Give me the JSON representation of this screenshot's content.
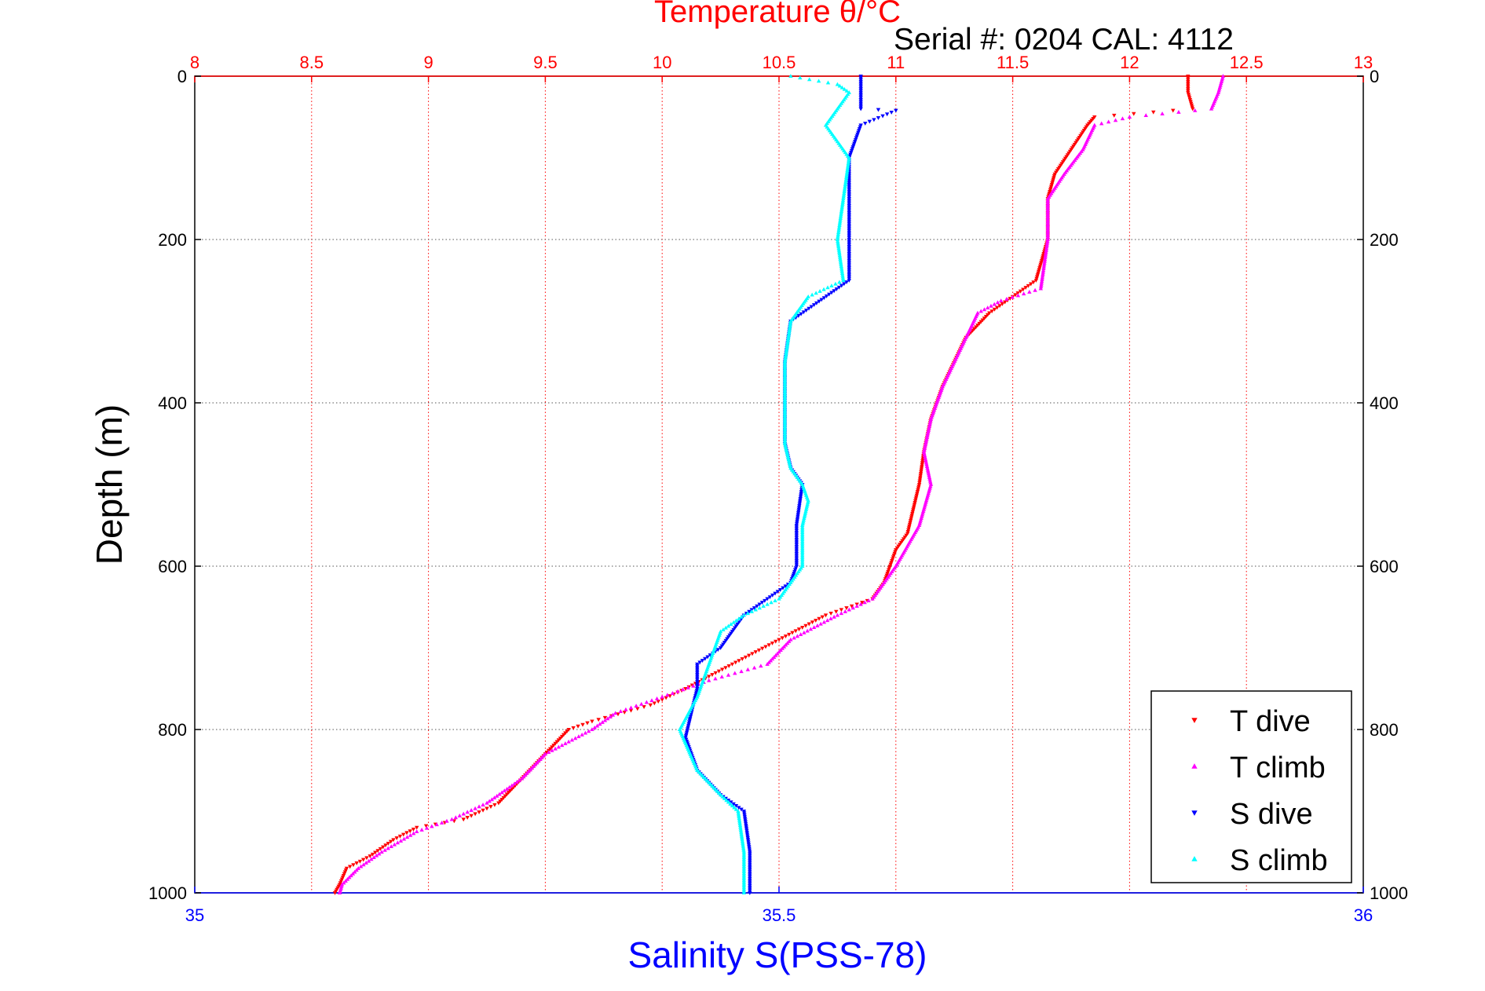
{
  "chart_data": {
    "type": "scatter",
    "title": "Temperature θ/°C",
    "subtitle": "Serial #: 0204  CAL: 4112",
    "xlabel": "Salinity S(PSS-78)",
    "ylabel": "Depth (m)",
    "top_axis": {
      "label": "Temperature θ/°C",
      "lim": [
        8,
        13
      ],
      "ticks": [
        "8",
        "8.5",
        "9",
        "9.5",
        "10",
        "10.5",
        "11",
        "11.5",
        "12",
        "12.5",
        "13"
      ],
      "tick_values": [
        8,
        8.5,
        9,
        9.5,
        10,
        10.5,
        11,
        11.5,
        12,
        12.5,
        13
      ],
      "color": "#ff0000",
      "grid": true
    },
    "bottom_axis": {
      "label": "Salinity S(PSS-78)",
      "lim": [
        35,
        36
      ],
      "ticks": [
        "35",
        "35.5",
        "36"
      ],
      "tick_values": [
        35,
        35.5,
        36
      ],
      "color": "#0000ff"
    },
    "y_axis": {
      "label": "Depth (m)",
      "lim": [
        0,
        1000
      ],
      "reversed": true,
      "ticks": [
        "0",
        "200",
        "400",
        "600",
        "800",
        "1000"
      ],
      "tick_values": [
        0,
        200,
        400,
        600,
        800,
        1000
      ],
      "grid": true
    },
    "legend": {
      "placement": "bottom-right"
    },
    "series": [
      {
        "name": "T dive",
        "axis": "temperature",
        "color": "#ff0000",
        "marker": "triangle-down",
        "points": [
          [
            12.25,
            0
          ],
          [
            12.25,
            20
          ],
          [
            12.27,
            40
          ],
          [
            11.85,
            50
          ],
          [
            11.82,
            60
          ],
          [
            11.75,
            90
          ],
          [
            11.68,
            120
          ],
          [
            11.65,
            150
          ],
          [
            11.65,
            200
          ],
          [
            11.6,
            250
          ],
          [
            11.5,
            270
          ],
          [
            11.4,
            290
          ],
          [
            11.3,
            320
          ],
          [
            11.2,
            380
          ],
          [
            11.15,
            420
          ],
          [
            11.12,
            460
          ],
          [
            11.1,
            500
          ],
          [
            11.05,
            560
          ],
          [
            11.0,
            580
          ],
          [
            10.95,
            620
          ],
          [
            10.9,
            640
          ],
          [
            10.7,
            660
          ],
          [
            10.5,
            690
          ],
          [
            10.3,
            720
          ],
          [
            10.1,
            750
          ],
          [
            9.95,
            770
          ],
          [
            9.7,
            790
          ],
          [
            9.6,
            800
          ],
          [
            9.5,
            830
          ],
          [
            9.4,
            860
          ],
          [
            9.3,
            890
          ],
          [
            9.15,
            910
          ],
          [
            8.95,
            920
          ],
          [
            8.85,
            935
          ],
          [
            8.75,
            955
          ],
          [
            8.65,
            970
          ],
          [
            8.62,
            990
          ],
          [
            8.6,
            1000
          ]
        ]
      },
      {
        "name": "T climb",
        "axis": "temperature",
        "color": "#ff00ff",
        "marker": "triangle-up",
        "points": [
          [
            12.4,
            0
          ],
          [
            12.38,
            20
          ],
          [
            12.35,
            40
          ],
          [
            12.0,
            50
          ],
          [
            11.85,
            60
          ],
          [
            11.8,
            90
          ],
          [
            11.72,
            120
          ],
          [
            11.65,
            150
          ],
          [
            11.65,
            200
          ],
          [
            11.62,
            260
          ],
          [
            11.45,
            275
          ],
          [
            11.35,
            290
          ],
          [
            11.3,
            320
          ],
          [
            11.2,
            380
          ],
          [
            11.15,
            420
          ],
          [
            11.12,
            460
          ],
          [
            11.15,
            500
          ],
          [
            11.1,
            550
          ],
          [
            11.0,
            600
          ],
          [
            10.95,
            620
          ],
          [
            10.9,
            640
          ],
          [
            10.75,
            660
          ],
          [
            10.55,
            690
          ],
          [
            10.45,
            720
          ],
          [
            10.2,
            740
          ],
          [
            10.0,
            760
          ],
          [
            9.8,
            780
          ],
          [
            9.7,
            800
          ],
          [
            9.5,
            830
          ],
          [
            9.4,
            860
          ],
          [
            9.25,
            890
          ],
          [
            9.1,
            910
          ],
          [
            8.95,
            925
          ],
          [
            8.8,
            950
          ],
          [
            8.7,
            970
          ],
          [
            8.63,
            990
          ],
          [
            8.62,
            1000
          ]
        ]
      },
      {
        "name": "S dive",
        "axis": "salinity",
        "color": "#0000ff",
        "marker": "triangle-down",
        "points": [
          [
            35.57,
            0
          ],
          [
            35.57,
            20
          ],
          [
            35.57,
            40
          ],
          [
            35.6,
            42
          ],
          [
            35.57,
            60
          ],
          [
            35.56,
            100
          ],
          [
            35.56,
            150
          ],
          [
            35.56,
            200
          ],
          [
            35.56,
            250
          ],
          [
            35.53,
            280
          ],
          [
            35.51,
            300
          ],
          [
            35.505,
            350
          ],
          [
            35.505,
            400
          ],
          [
            35.505,
            450
          ],
          [
            35.51,
            480
          ],
          [
            35.52,
            500
          ],
          [
            35.515,
            550
          ],
          [
            35.515,
            600
          ],
          [
            35.51,
            620
          ],
          [
            35.49,
            640
          ],
          [
            35.47,
            660
          ],
          [
            35.45,
            700
          ],
          [
            35.43,
            720
          ],
          [
            35.43,
            750
          ],
          [
            35.425,
            780
          ],
          [
            35.42,
            810
          ],
          [
            35.43,
            850
          ],
          [
            35.45,
            880
          ],
          [
            35.47,
            900
          ],
          [
            35.475,
            950
          ],
          [
            35.475,
            1000
          ]
        ]
      },
      {
        "name": "S climb",
        "axis": "salinity",
        "color": "#00ffff",
        "marker": "triangle-up",
        "points": [
          [
            35.51,
            0
          ],
          [
            35.55,
            10
          ],
          [
            35.56,
            20
          ],
          [
            35.55,
            40
          ],
          [
            35.54,
            60
          ],
          [
            35.55,
            80
          ],
          [
            35.56,
            100
          ],
          [
            35.555,
            150
          ],
          [
            35.55,
            200
          ],
          [
            35.555,
            250
          ],
          [
            35.525,
            270
          ],
          [
            35.51,
            300
          ],
          [
            35.505,
            350
          ],
          [
            35.505,
            400
          ],
          [
            35.505,
            450
          ],
          [
            35.51,
            480
          ],
          [
            35.52,
            500
          ],
          [
            35.525,
            520
          ],
          [
            35.52,
            550
          ],
          [
            35.52,
            600
          ],
          [
            35.5,
            640
          ],
          [
            35.47,
            660
          ],
          [
            35.45,
            680
          ],
          [
            35.44,
            720
          ],
          [
            35.43,
            760
          ],
          [
            35.415,
            800
          ],
          [
            35.43,
            850
          ],
          [
            35.45,
            880
          ],
          [
            35.465,
            900
          ],
          [
            35.47,
            950
          ],
          [
            35.47,
            1000
          ]
        ]
      }
    ]
  }
}
